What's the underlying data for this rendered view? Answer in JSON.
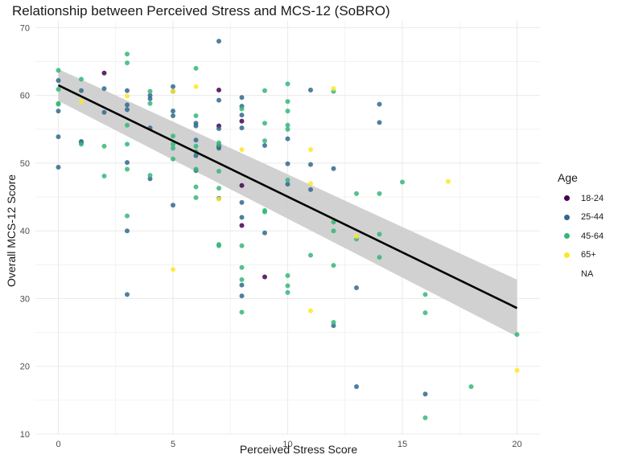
{
  "chart_data": {
    "type": "scatter",
    "title": "Relationship between Perceived Stress and MCS-12 (SoBRO)",
    "xlabel": "Perceived Stress Score",
    "ylabel": "Overall MCS-12 Score",
    "xlim": [
      -1,
      21
    ],
    "ylim": [
      10,
      71
    ],
    "x_ticks": [
      0,
      5,
      10,
      15,
      20
    ],
    "y_ticks": [
      10,
      20,
      30,
      40,
      50,
      60,
      70
    ],
    "grid": true,
    "legend": {
      "title": "Age",
      "placement": "right",
      "entries": [
        {
          "label": "18-24",
          "color": "#440154"
        },
        {
          "label": "25-44",
          "color": "#31688e"
        },
        {
          "label": "45-64",
          "color": "#35b779"
        },
        {
          "label": "65+",
          "color": "#fde725"
        },
        {
          "label": "NA",
          "color": ""
        }
      ]
    },
    "series": [
      {
        "name": "18-24",
        "color": "#440154",
        "points": [
          [
            2,
            63.3
          ],
          [
            7,
            60.8
          ],
          [
            7,
            55.5
          ],
          [
            8,
            56.2
          ],
          [
            8,
            46.7
          ],
          [
            8,
            40.8
          ],
          [
            9,
            33.2
          ],
          [
            7,
            52.5
          ]
        ]
      },
      {
        "name": "25-44",
        "color": "#31688e",
        "points": [
          [
            0,
            62.2
          ],
          [
            0,
            57.7
          ],
          [
            0,
            53.9
          ],
          [
            0,
            49.4
          ],
          [
            1,
            60.7
          ],
          [
            1,
            53.2
          ],
          [
            1,
            53.0
          ],
          [
            2,
            61.0
          ],
          [
            2,
            57.5
          ],
          [
            3,
            60.7
          ],
          [
            3,
            58.6
          ],
          [
            3,
            57.9
          ],
          [
            3,
            50.1
          ],
          [
            3,
            40.0
          ],
          [
            3,
            30.6
          ],
          [
            4,
            60.0
          ],
          [
            4,
            59.5
          ],
          [
            4,
            55.2
          ],
          [
            4,
            47.7
          ],
          [
            5,
            61.3
          ],
          [
            5,
            60.6
          ],
          [
            5,
            57.7
          ],
          [
            5,
            57.0
          ],
          [
            5,
            43.8
          ],
          [
            6,
            55.9
          ],
          [
            6,
            55.5
          ],
          [
            6,
            53.4
          ],
          [
            6,
            51.1
          ],
          [
            6,
            48.9
          ],
          [
            7,
            68.0
          ],
          [
            7,
            59.3
          ],
          [
            7,
            55.1
          ],
          [
            7,
            52.2
          ],
          [
            7,
            44.8
          ],
          [
            8,
            59.7
          ],
          [
            8,
            58.4
          ],
          [
            8,
            57.1
          ],
          [
            8,
            55.2
          ],
          [
            8,
            44.2
          ],
          [
            8,
            42.0
          ],
          [
            8,
            32.0
          ],
          [
            8,
            30.4
          ],
          [
            9,
            52.6
          ],
          [
            9,
            39.7
          ],
          [
            10,
            53.6
          ],
          [
            10,
            49.9
          ],
          [
            10,
            46.9
          ],
          [
            11,
            60.8
          ],
          [
            11,
            49.8
          ],
          [
            11,
            46.1
          ],
          [
            12,
            49.2
          ],
          [
            12,
            26.0
          ],
          [
            13,
            31.6
          ],
          [
            13,
            17.0
          ],
          [
            14,
            58.7
          ],
          [
            14,
            56.0
          ],
          [
            16,
            15.9
          ]
        ]
      },
      {
        "name": "45-64",
        "color": "#35b779",
        "points": [
          [
            0,
            63.7
          ],
          [
            0,
            60.9
          ],
          [
            0,
            58.8
          ],
          [
            0,
            58.7
          ],
          [
            1,
            62.4
          ],
          [
            1,
            52.8
          ],
          [
            2,
            52.5
          ],
          [
            2,
            48.1
          ],
          [
            3,
            66.1
          ],
          [
            3,
            64.8
          ],
          [
            3,
            55.6
          ],
          [
            3,
            52.8
          ],
          [
            3,
            49.1
          ],
          [
            3,
            42.2
          ],
          [
            4,
            60.6
          ],
          [
            4,
            58.8
          ],
          [
            4,
            48.2
          ],
          [
            5,
            54.0
          ],
          [
            5,
            52.8
          ],
          [
            5,
            52.2
          ],
          [
            5,
            50.6
          ],
          [
            6,
            64.0
          ],
          [
            6,
            57.0
          ],
          [
            6,
            52.5
          ],
          [
            6,
            51.7
          ],
          [
            6,
            49.1
          ],
          [
            6,
            46.5
          ],
          [
            6,
            44.9
          ],
          [
            7,
            53.0
          ],
          [
            7,
            52.7
          ],
          [
            7,
            48.8
          ],
          [
            7,
            46.3
          ],
          [
            7,
            38.0
          ],
          [
            7,
            37.8
          ],
          [
            8,
            58.0
          ],
          [
            8,
            37.8
          ],
          [
            8,
            34.6
          ],
          [
            8,
            32.8
          ],
          [
            8,
            28.0
          ],
          [
            9,
            60.7
          ],
          [
            9,
            55.9
          ],
          [
            9,
            53.3
          ],
          [
            9,
            43.0
          ],
          [
            9,
            42.8
          ],
          [
            10,
            61.7
          ],
          [
            10,
            59.1
          ],
          [
            10,
            57.7
          ],
          [
            10,
            55.6
          ],
          [
            10,
            55.0
          ],
          [
            10,
            47.5
          ],
          [
            10,
            33.4
          ],
          [
            10,
            31.9
          ],
          [
            10,
            30.9
          ],
          [
            11,
            36.4
          ],
          [
            12,
            60.6
          ],
          [
            12,
            41.3
          ],
          [
            12,
            40.0
          ],
          [
            12,
            34.9
          ],
          [
            12,
            26.5
          ],
          [
            13,
            45.5
          ],
          [
            13,
            38.8
          ],
          [
            14,
            45.5
          ],
          [
            14,
            39.5
          ],
          [
            14,
            36.1
          ],
          [
            15,
            47.2
          ],
          [
            16,
            30.6
          ],
          [
            16,
            27.9
          ],
          [
            16,
            12.4
          ],
          [
            18,
            17.0
          ],
          [
            20,
            24.7
          ]
        ]
      },
      {
        "name": "65+",
        "color": "#fde725",
        "points": [
          [
            1,
            59.1
          ],
          [
            3,
            59.9
          ],
          [
            5,
            34.3
          ],
          [
            5,
            60.6
          ],
          [
            6,
            61.3
          ],
          [
            7,
            44.7
          ],
          [
            8,
            52.0
          ],
          [
            11,
            52.0
          ],
          [
            11,
            47.0
          ],
          [
            11,
            28.2
          ],
          [
            12,
            61.0
          ],
          [
            13,
            39.2
          ],
          [
            17,
            47.3
          ],
          [
            20,
            19.4
          ]
        ]
      }
    ],
    "trend_line": {
      "x": [
        0,
        20
      ],
      "y": [
        61.5,
        28.6
      ],
      "color": "#000000"
    },
    "confidence_band": {
      "x": [
        0,
        20
      ],
      "upper": [
        63.9,
        32.8
      ],
      "lower": [
        59.2,
        24.4
      ],
      "color": "#cccccc"
    }
  }
}
